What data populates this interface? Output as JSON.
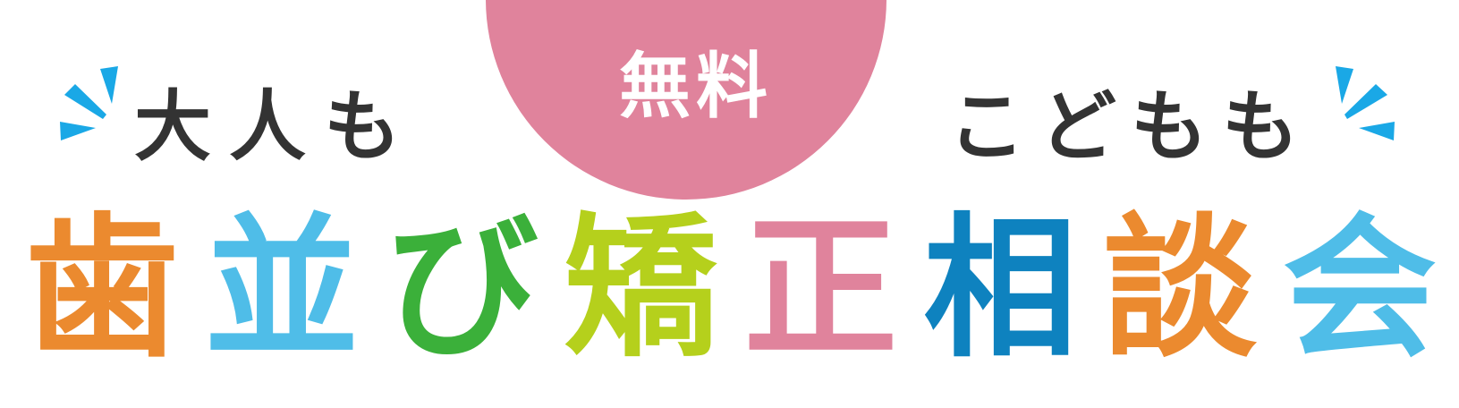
{
  "badge": {
    "text": "無料",
    "color": "#e0839c"
  },
  "subtitle_left": "大人も",
  "subtitle_right": "こどもも",
  "title": {
    "characters": [
      {
        "char": "歯",
        "color": "#eb8a2f"
      },
      {
        "char": "並",
        "color": "#4fbde8"
      },
      {
        "char": "び",
        "color": "#3bb03a"
      },
      {
        "char": "矯",
        "color": "#b5d01c"
      },
      {
        "char": "正",
        "color": "#e0839c"
      },
      {
        "char": "相",
        "color": "#0e82bf"
      },
      {
        "char": "談",
        "color": "#eb8a2f"
      },
      {
        "char": "会",
        "color": "#4fbde8"
      }
    ]
  },
  "colors": {
    "sparkle": "#1aa8e6",
    "subtitle_text": "#333333"
  }
}
